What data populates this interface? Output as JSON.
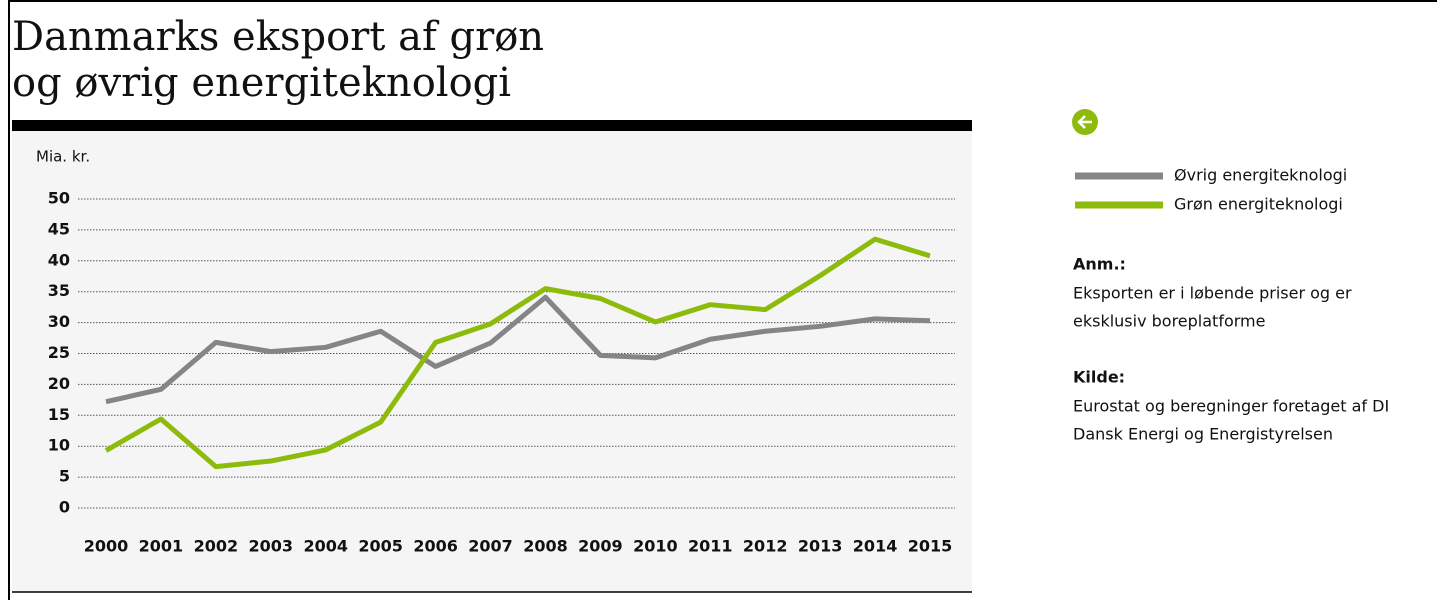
{
  "chart_data": {
    "type": "line",
    "title": [
      "Danmarks eksport af grøn",
      "og øvrig energiteknologi"
    ],
    "y_label": "Mia. kr.",
    "x": [
      "2000",
      "2001",
      "2002",
      "2003",
      "2004",
      "2005",
      "2006",
      "2007",
      "2008",
      "2009",
      "2010",
      "2011",
      "2012",
      "2013",
      "2014",
      "2015"
    ],
    "series": [
      {
        "name": "Øvrig energiteknologi",
        "color": "#848489",
        "values": [
          17.2,
          19.2,
          26.8,
          25.3,
          26.0,
          28.6,
          22.9,
          26.7,
          34.1,
          24.7,
          24.3,
          27.3,
          28.6,
          29.4,
          30.6,
          30.3
        ]
      },
      {
        "name": "Grøn energiteknologi",
        "color": "#8dbb0c",
        "values": [
          9.3,
          14.4,
          6.7,
          7.6,
          9.4,
          13.9,
          26.8,
          29.8,
          35.5,
          33.9,
          30.1,
          32.9,
          32.1,
          37.6,
          43.5,
          40.8
        ]
      }
    ],
    "ylim": [
      0,
      50
    ],
    "yticks": [
      0,
      5,
      10,
      15,
      20,
      25,
      30,
      35,
      40,
      45,
      50
    ],
    "grid": true
  },
  "notes": [
    {
      "heading": "Anm.:",
      "lines": [
        "Eksporten er i løbende priser og er",
        "eksklusiv boreplatforme"
      ]
    },
    {
      "heading": "Kilde:",
      "lines": [
        "Eurostat og beregninger foretaget af DI",
        "Dansk Energi og Energistyrelsen"
      ]
    }
  ]
}
